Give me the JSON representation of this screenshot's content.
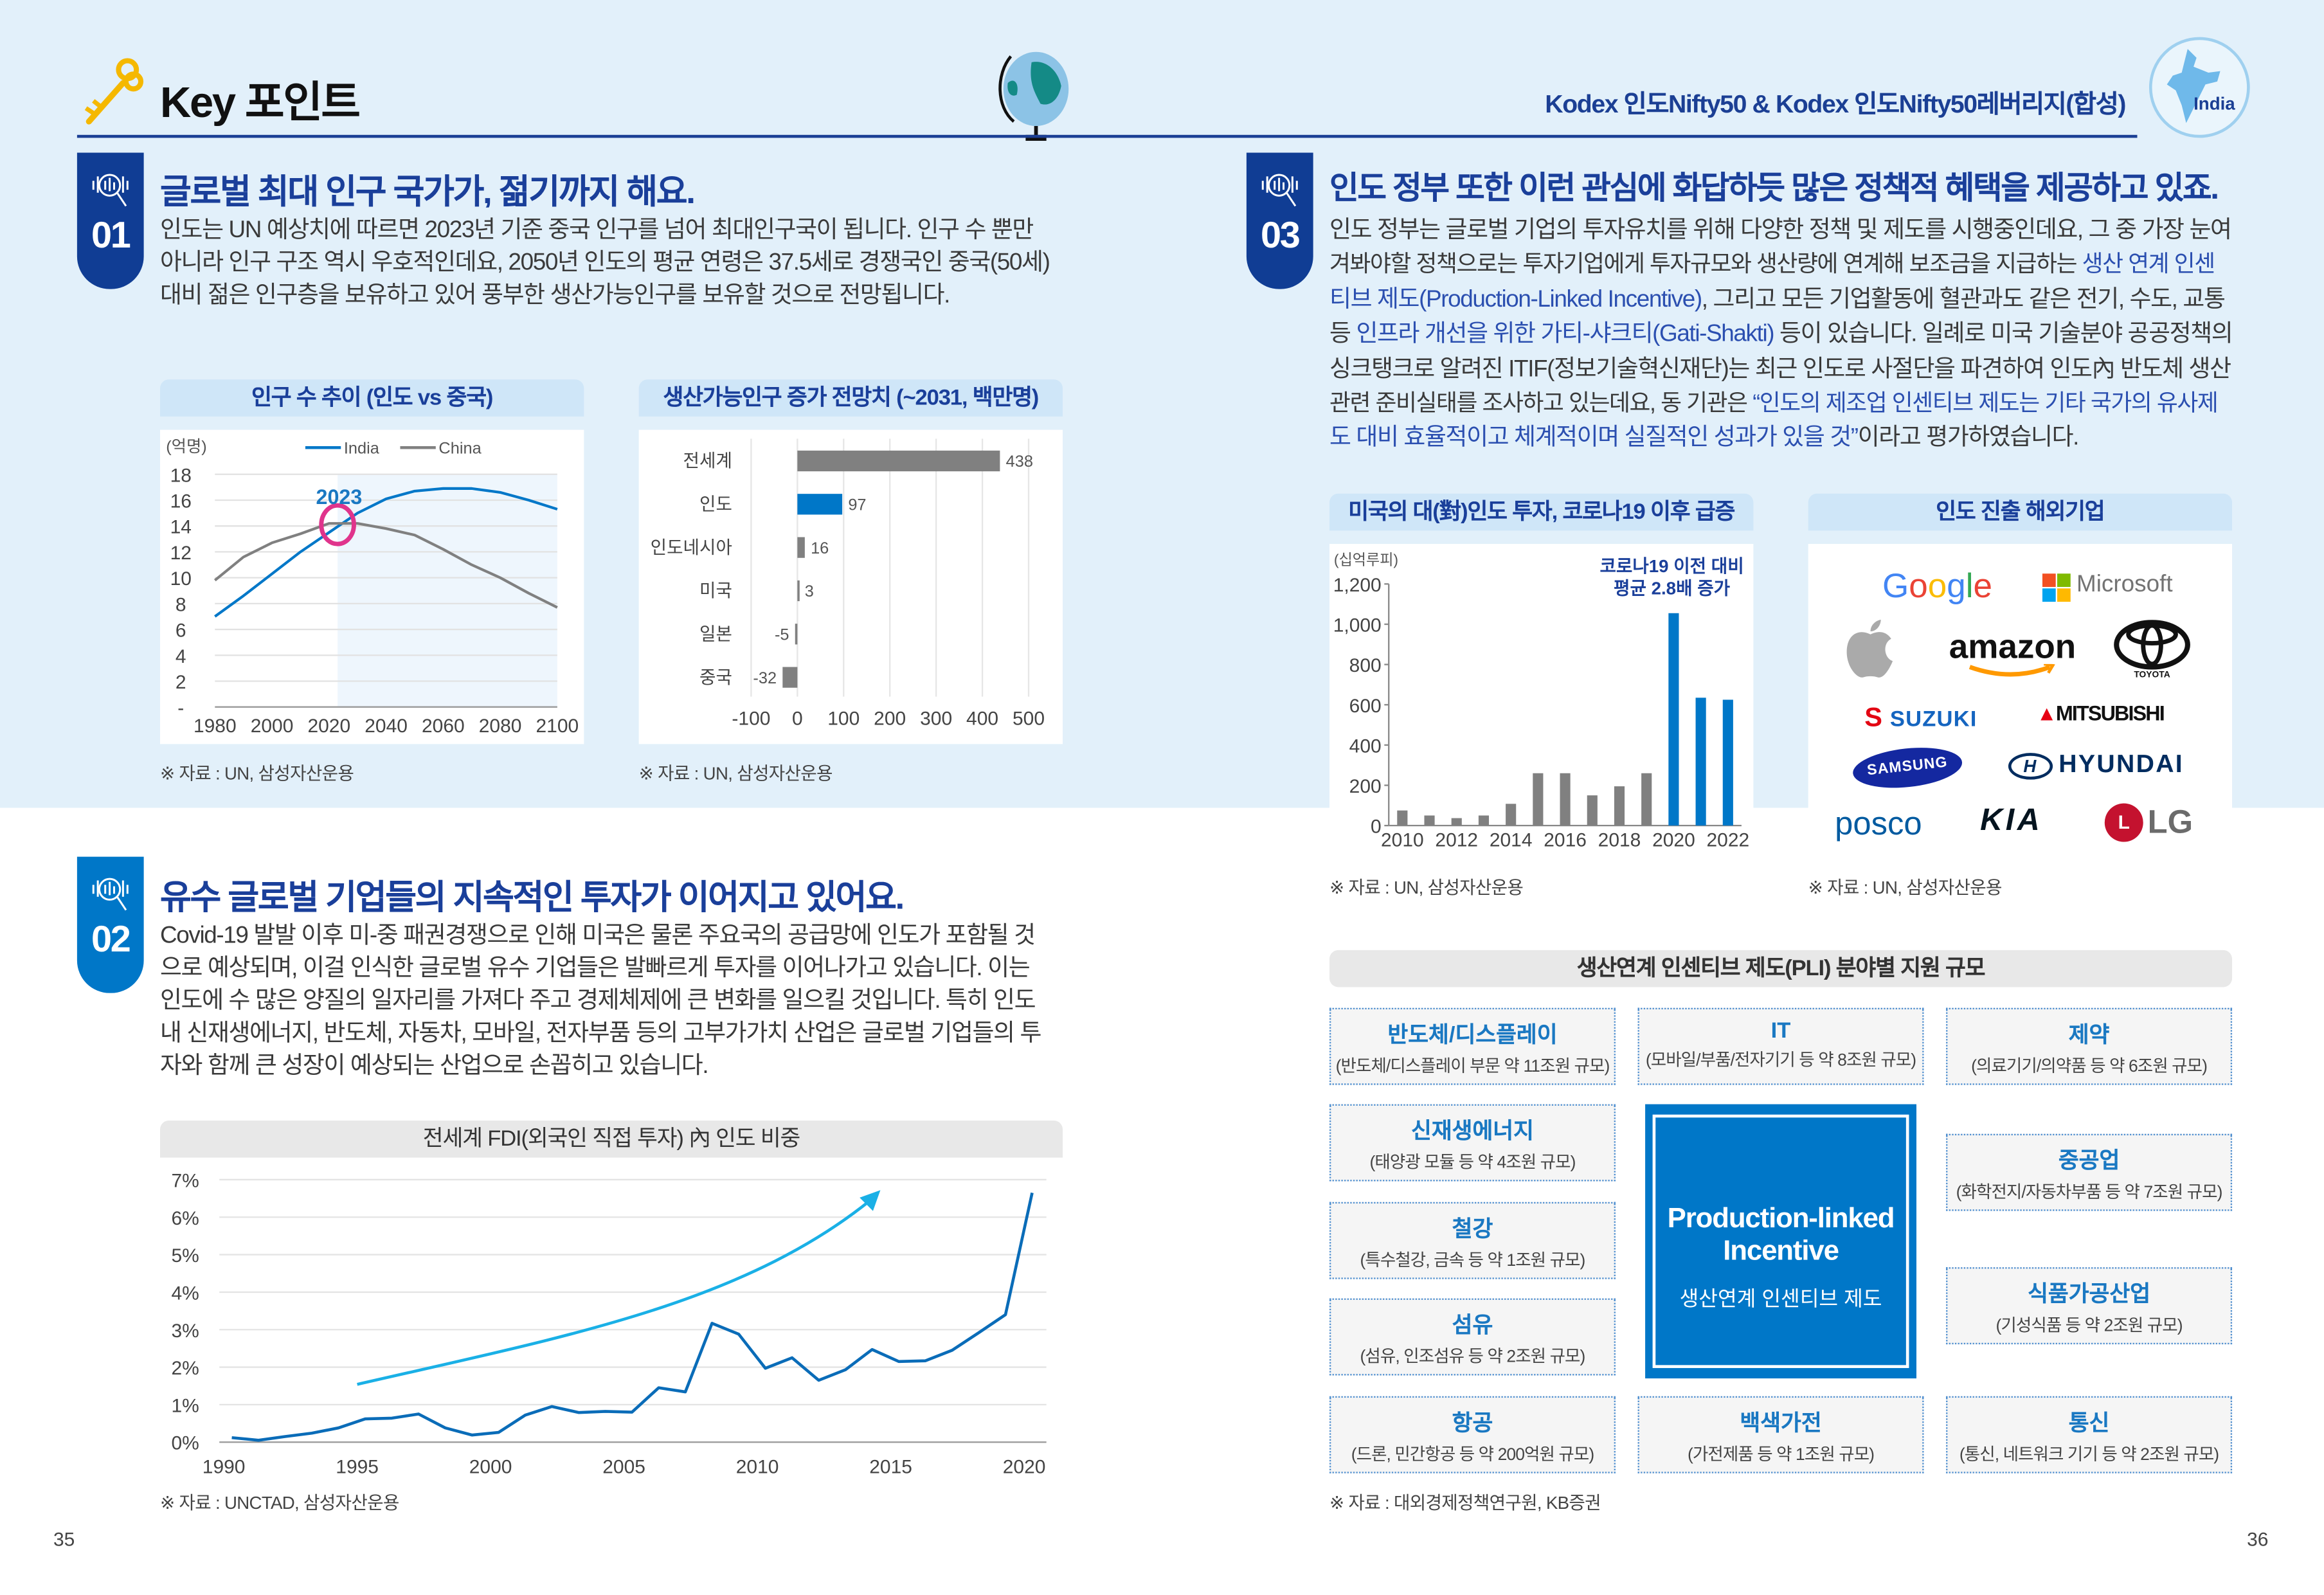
{
  "header": {
    "title": "Key 포인트",
    "product": "Kodex 인도Nifty50 & Kodex 인도Nifty50레버리지(합성)",
    "india_label": "India",
    "icons": [
      "key-icon",
      "globe-icon",
      "india-map-icon"
    ]
  },
  "colors": {
    "dark_blue": "#1a3f9a",
    "blue": "#0077c8",
    "light_bg": "#e2f0fa",
    "accent_pink": "#e0348c",
    "arrow": "#1ab0e6",
    "grey_bar": "#808080"
  },
  "sections": [
    {
      "num": "01",
      "title": "글로벌 최대 인구 국가가, 젊기까지 해요.",
      "lines": [
        [
          {
            "t": "인도는 UN 예상치에 따르면 2023년 기준 중국 인구를 넘어 최대인구국이 됩니다. 인구 수 뿐만"
          }
        ],
        [
          {
            "t": "아니라 인구 구조 역시 우호적인데요, 2050년 인도의 평균 연령은 37.5세로 경쟁국인 중국(50세)"
          }
        ],
        [
          {
            "t": "대비 젊은 인구층을 보유하고 있어 풍부한 생산가능인구를 보유할 것으로 전망됩니다."
          }
        ]
      ]
    },
    {
      "num": "02",
      "title": "유수 글로벌 기업들의 지속적인 투자가 이어지고 있어요.",
      "lines": [
        [
          {
            "t": "Covid-19 발발 이후 미-중 패권경쟁으로 인해 미국은 물론 주요국의 공급망에 인도가 포함될 것"
          }
        ],
        [
          {
            "t": "으로 예상되며, 이걸 인식한 글로벌 유수 기업들은 발빠르게 투자를 이어나가고 있습니다. 이는"
          }
        ],
        [
          {
            "t": "인도에 수 많은 양질의 일자리를 가져다 주고 경제체제에 큰 변화를 일으킬 것입니다. 특히 인도"
          }
        ],
        [
          {
            "t": "내 신재생에너지, 반도체, 자동차, 모바일, 전자부품 등의 고부가가치 산업은 글로벌 기업들의 투"
          }
        ],
        [
          {
            "t": "자와 함께 큰 성장이 예상되는 산업으로 손꼽히고 있습니다."
          }
        ]
      ]
    },
    {
      "num": "03",
      "title": "인도 정부 또한 이런 관심에 화답하듯 많은 정책적 혜택을 제공하고 있죠.",
      "lines": [
        [
          {
            "t": "인도 정부는 글로벌 기업의 투자유치를 위해 다양한 정책 및 제도를 시행중인데요, 그 중 가장 눈여"
          }
        ],
        [
          {
            "t": "겨봐야할 정책으로는 투자기업에게 투자규모와 생산량에 연계해 보조금을 지급하는 "
          },
          {
            "t": "생산 연계 인센",
            "hl": true
          }
        ],
        [
          {
            "t": "티브 제도(Production-Linked Incentive)",
            "hl": true
          },
          {
            "t": ", 그리고 모든 기업활동에 혈관과도 같은 전기, 수도, 교통"
          }
        ],
        [
          {
            "t": "등 "
          },
          {
            "t": "인프라 개선을 위한 가티-샤크티(Gati-Shakti)",
            "hl": true
          },
          {
            "t": " 등이 있습니다. 일례로 미국 기술분야 공공정책의"
          }
        ],
        [
          {
            "t": "싱크탱크로 알려진 ITIF(정보기술혁신재단)는 최근 인도로 사절단을 파견하여 인도內 반도체 생산"
          }
        ],
        [
          {
            "t": "관련 준비실태를 조사하고 있는데요, 동 기관은 "
          },
          {
            "t": "“인도의 제조업 인센티브 제도는 기타 국가의 유사제",
            "hl": true
          }
        ],
        [
          {
            "t": "도 대비 효율적이고 체계적이며 실질적인 성과가 있을 것”",
            "hl": true
          },
          {
            "t": "이라고 평가하였습니다."
          }
        ]
      ]
    }
  ],
  "chart_data": [
    {
      "id": "population",
      "type": "line",
      "title": "인구 수 추이 (인도 vs 중국)",
      "unit": "(억명)",
      "x": [
        1980,
        1990,
        2000,
        2010,
        2020,
        2030,
        2040,
        2050,
        2060,
        2070,
        2080,
        2090,
        2100
      ],
      "series": [
        {
          "name": "India",
          "color": "#0077c8",
          "values": [
            7.0,
            8.6,
            10.3,
            12.0,
            13.5,
            15.0,
            16.1,
            16.7,
            16.9,
            16.9,
            16.6,
            16.0,
            15.3
          ]
        },
        {
          "name": "China",
          "color": "#808080",
          "values": [
            9.8,
            11.6,
            12.7,
            13.4,
            14.2,
            14.2,
            13.8,
            13.3,
            12.2,
            11.0,
            10.0,
            8.8,
            7.7
          ]
        }
      ],
      "ylim": [
        0,
        18
      ],
      "yticks": [
        0,
        2,
        4,
        6,
        8,
        10,
        12,
        14,
        16,
        18
      ],
      "ytick_labels": [
        "-",
        "2",
        "4",
        "6",
        "8",
        "10",
        "12",
        "14",
        "16",
        "18"
      ],
      "xticks": [
        1980,
        2000,
        2020,
        2040,
        2060,
        2080,
        2100
      ],
      "xtick_labels": [
        "1980",
        "2000",
        "2020",
        "2040",
        "2060",
        "2080",
        "2100"
      ],
      "annotation": {
        "label": "2023",
        "x": 2023
      },
      "forecast_shade_from": 2023,
      "grid": true,
      "legend": "top",
      "source": "※ 자료 : UN, 삼성자산운용"
    },
    {
      "id": "working_age",
      "type": "bar",
      "orientation": "horizontal",
      "title": "생산가능인구 증가 전망치 (~2031, 백만명)",
      "categories": [
        "전세계",
        "인도",
        "인도네시아",
        "미국",
        "일본",
        "중국"
      ],
      "values": [
        438,
        97,
        16,
        3,
        -5,
        -32
      ],
      "value_labels": [
        "438",
        "97",
        "16",
        "3",
        "-5",
        "-32"
      ],
      "highlight": "인도",
      "xlim": [
        -100,
        500
      ],
      "xticks": [
        -100,
        0,
        100,
        200,
        300,
        400,
        500
      ],
      "xtick_labels": [
        "-100",
        "0",
        "100",
        "200",
        "300",
        "400",
        "500"
      ],
      "grid": true,
      "source": "※ 자료 : UN, 삼성자산운용"
    },
    {
      "id": "fdi_share",
      "type": "line",
      "title": "전세계 FDI(외국인 직접 투자) 內 인도 비중",
      "x": [
        1990,
        1991,
        1992,
        1993,
        1994,
        1995,
        1996,
        1997,
        1998,
        1999,
        2000,
        2001,
        2002,
        2003,
        2004,
        2005,
        2006,
        2007,
        2008,
        2009,
        2010,
        2011,
        2012,
        2013,
        2014,
        2015,
        2016,
        2017,
        2018,
        2019,
        2020
      ],
      "values": [
        0.12,
        0.05,
        0.15,
        0.24,
        0.38,
        0.62,
        0.64,
        0.75,
        0.38,
        0.19,
        0.26,
        0.72,
        0.95,
        0.79,
        0.82,
        0.8,
        1.45,
        1.34,
        3.17,
        2.88,
        1.97,
        2.25,
        1.65,
        1.93,
        2.47,
        2.15,
        2.17,
        2.45,
        2.92,
        3.4,
        6.65
      ],
      "unit": "%",
      "ylim": [
        0,
        7
      ],
      "yticks": [
        0,
        1,
        2,
        3,
        4,
        5,
        6,
        7
      ],
      "ytick_labels": [
        "0%",
        "1%",
        "2%",
        "3%",
        "4%",
        "5%",
        "6%",
        "7%"
      ],
      "xticks": [
        1990,
        1995,
        2000,
        2005,
        2010,
        2015,
        2020
      ],
      "xtick_labels": [
        "1990",
        "1995",
        "2000",
        "2005",
        "2010",
        "2015",
        "2020"
      ],
      "trend_arrow": true,
      "grid": true,
      "source": "※ 자료 : UNCTAD, 삼성자산운용"
    },
    {
      "id": "us_investment",
      "type": "bar",
      "title": "미국의 대(對)인도 투자, 코로나19 이후 급증",
      "unit": "(십억루피)",
      "categories": [
        2010,
        2011,
        2012,
        2013,
        2014,
        2015,
        2016,
        2017,
        2018,
        2019,
        2020,
        2021,
        2022
      ],
      "values": [
        75,
        50,
        37,
        50,
        108,
        260,
        260,
        150,
        195,
        260,
        1055,
        635,
        625
      ],
      "highlight_from": 2020,
      "ylim": [
        0,
        1200
      ],
      "yticks": [
        0,
        200,
        400,
        600,
        800,
        1000,
        1200
      ],
      "ytick_labels": [
        "0",
        "200",
        "400",
        "600",
        "800",
        "1,000",
        "1,200"
      ],
      "xtick_labels": [
        "2010",
        "2012",
        "2014",
        "2016",
        "2018",
        "2020",
        "2022"
      ],
      "annotation": [
        "코로나19 이전 대비",
        "평균 2.8배 증가"
      ],
      "source": "※ 자료 : UN, 삼성자산운용"
    }
  ],
  "companies": {
    "title": "인도 진출 해외기업",
    "logos": [
      "Google",
      "Microsoft",
      "Apple",
      "amazon",
      "TOYOTA",
      "SUZUKI",
      "MITSUBISHI",
      "SAMSUNG",
      "HYUNDAI",
      "posco",
      "KIA",
      "LG"
    ],
    "source": "※ 자료 : UN, 삼성자산운용"
  },
  "pli": {
    "title": "생산연계 인센티브 제도(PLI) 분야별 지원 규모",
    "center_en": "Production-linked Incentive",
    "center_ko": "생산연계 인센티브 제도",
    "items": [
      {
        "name": "반도체/디스플레이",
        "desc": "(반도체/디스플레이 부문 약 11조원 규모)"
      },
      {
        "name": "IT",
        "desc": "(모바일/부품/전자기기 등 약 8조원 규모)"
      },
      {
        "name": "제약",
        "desc": "(의료기기/의약품 등 약 6조원 규모)"
      },
      {
        "name": "신재생에너지",
        "desc": "(태양광 모듈 등 약 4조원 규모)"
      },
      {
        "name": "중공업",
        "desc": "(화학전지/자동차부품 등 약 7조원 규모)"
      },
      {
        "name": "철강",
        "desc": "(특수철강, 금속 등 약 1조원 규모)"
      },
      {
        "name": "식품가공산업",
        "desc": "(기성식품 등 약 2조원 규모)"
      },
      {
        "name": "섬유",
        "desc": "(섬유, 인조섬유 등 약 2조원 규모)"
      },
      {
        "name": "항공",
        "desc": "(드론, 민간항공 등 약 200억원 규모)"
      },
      {
        "name": "백색가전",
        "desc": "(가전제품 등 약 1조원 규모)"
      },
      {
        "name": "통신",
        "desc": "(통신, 네트워크 기기 등 약 2조원 규모)"
      }
    ],
    "source": "※ 자료 : 대외경제정책연구원, KB증권"
  },
  "pages": {
    "left": "35",
    "right": "36"
  }
}
